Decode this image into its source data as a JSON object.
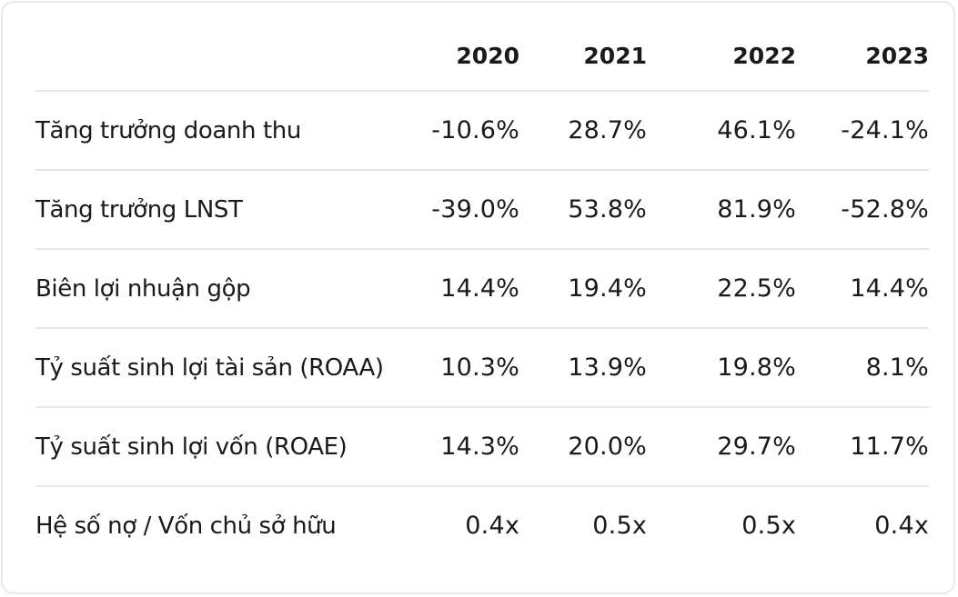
{
  "table": {
    "columns": [
      "2020",
      "2021",
      "2022",
      "2023"
    ],
    "rows": [
      {
        "label": "Tăng trưởng doanh thu",
        "values": [
          "-10.6%",
          "28.7%",
          "46.1%",
          "-24.1%"
        ]
      },
      {
        "label": "Tăng trưởng LNST",
        "values": [
          "-39.0%",
          "53.8%",
          "81.9%",
          "-52.8%"
        ]
      },
      {
        "label": "Biên lợi nhuận gộp",
        "values": [
          "14.4%",
          "19.4%",
          "22.5%",
          "14.4%"
        ]
      },
      {
        "label": "Tỷ suất sinh lợi tài sản (ROAA)",
        "values": [
          "10.3%",
          "13.9%",
          "19.8%",
          "8.1%"
        ]
      },
      {
        "label": "Tỷ suất sinh lợi vốn (ROAE)",
        "values": [
          "14.3%",
          "20.0%",
          "29.7%",
          "11.7%"
        ]
      },
      {
        "label": "Hệ số nợ / Vốn chủ sở hữu",
        "values": [
          "0.4x",
          "0.5x",
          "0.5x",
          "0.4x"
        ]
      }
    ]
  }
}
